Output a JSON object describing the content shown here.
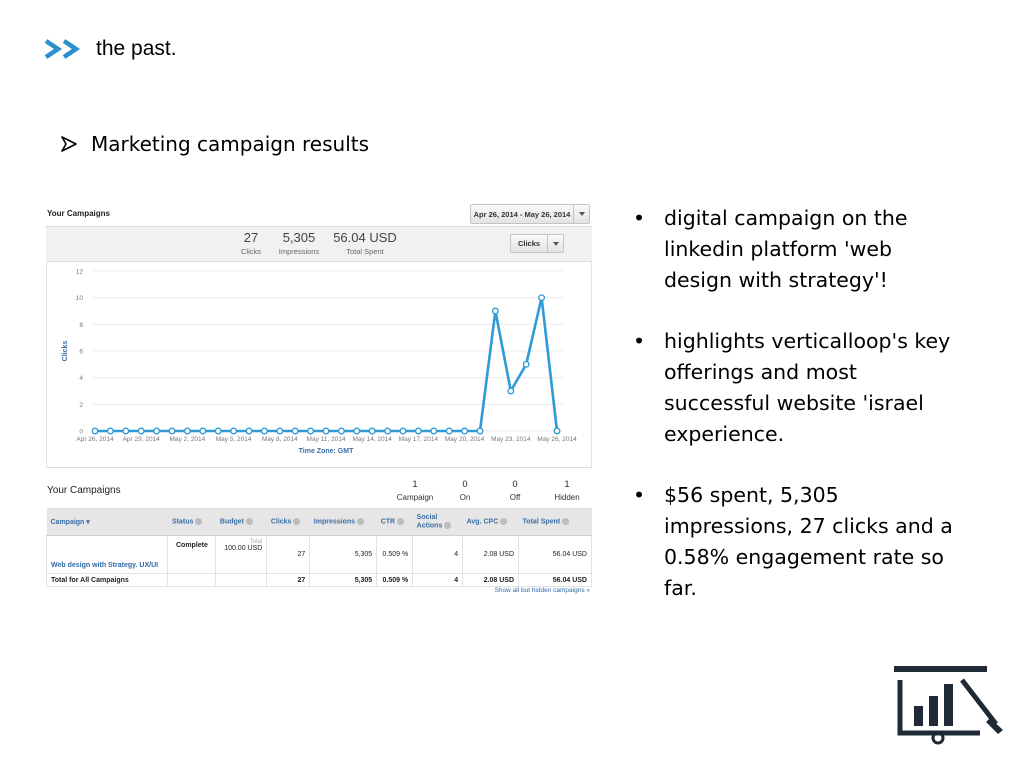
{
  "header": {
    "title": "the past.",
    "icon": "double-chevron-right-icon",
    "accent_color": "#2a8fcc"
  },
  "subtitle": {
    "bullet_icon": "arrow-bullet-icon",
    "text": "Marketing campaign results"
  },
  "screenshot": {
    "title": "Your Campaigns",
    "date_range": "Apr 26, 2014 - May 26, 2014",
    "stats": [
      {
        "value": "27",
        "label": "Clicks"
      },
      {
        "value": "5,305",
        "label": "Impressions"
      },
      {
        "value": "56.04 USD",
        "label": "Total Spent"
      }
    ],
    "metric_selector": "Clicks",
    "summary": {
      "title": "Your Campaigns",
      "counts": [
        {
          "value": "1",
          "label": "Campaign"
        },
        {
          "value": "0",
          "label": "On"
        },
        {
          "value": "0",
          "label": "Off"
        },
        {
          "value": "1",
          "label": "Hidden"
        }
      ]
    },
    "table": {
      "headers": {
        "campaign": "Campaign",
        "status": "Status",
        "budget": "Budget",
        "clicks": "Clicks",
        "impressions": "Impressions",
        "ctr": "CTR",
        "social_line1": "Social",
        "social_line2": "Actions",
        "avg_cpc": "Avg. CPC",
        "total_spent": "Total Spent"
      },
      "row": {
        "campaign": "Web design with Strategy. UX/UI",
        "status": "Complete",
        "budget_note": "Total",
        "budget": "100.00 USD",
        "clicks": "27",
        "impressions": "5,305",
        "ctr": "0.509 %",
        "social": "4",
        "avg_cpc": "2.08 USD",
        "total_spent": "56.04 USD"
      },
      "total": {
        "label": "Total for All Campaigns",
        "clicks": "27",
        "impressions": "5,305",
        "ctr": "0.509 %",
        "social": "4",
        "avg_cpc": "2.08 USD",
        "total_spent": "56.04 USD"
      }
    },
    "show_all_link": "Show all but hidden campaigns »"
  },
  "chart_data": {
    "type": "line",
    "ylabel": "Clicks",
    "xlabel": "Time Zone: GMT",
    "ylim": [
      0,
      12
    ],
    "yticks": [
      "0",
      "2",
      "4",
      "6",
      "8",
      "10",
      "12"
    ],
    "x_tick_labels": [
      "Apr 26, 2014",
      "Apr 29, 2014",
      "May 2, 2014",
      "May 5, 2014",
      "May 8, 2014",
      "May 11, 2014",
      "May 14, 2014",
      "May 17, 2014",
      "May 20, 2014",
      "May 23, 2014",
      "May 26, 2014"
    ],
    "x_start": "Apr 26, 2014",
    "series": [
      {
        "values": [
          0,
          0,
          0,
          0,
          0,
          0,
          0,
          0,
          0,
          0,
          0,
          0,
          0,
          0,
          0,
          0,
          0,
          0,
          0,
          0,
          0,
          0,
          0,
          0,
          0,
          0,
          9,
          3,
          5,
          10,
          0
        ]
      }
    ],
    "grid": true,
    "line_color": "#2e9ad6"
  },
  "bullets": [
    "digital campaign on the linkedin platform 'web design with strategy'!",
    "highlights verticalloop's key offerings and most successful website 'israel experience.",
    "$56 spent, 5,305 impressions, 27 clicks and a 0.58% engagement rate so far."
  ],
  "bullet_symbol": "•",
  "corner_icon": "presentation-chart-icon"
}
